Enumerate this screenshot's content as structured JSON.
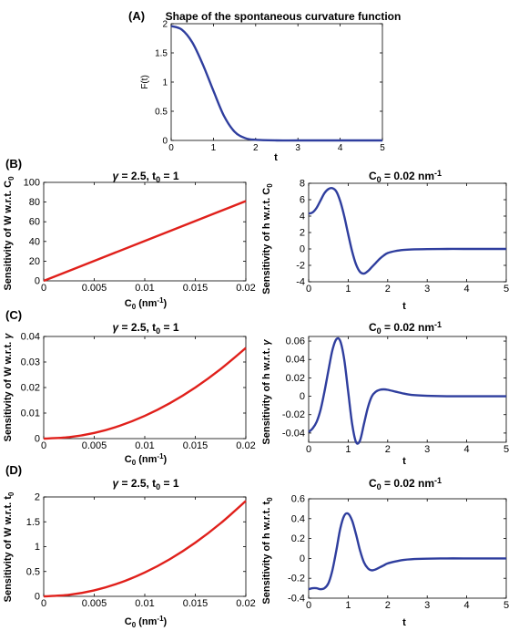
{
  "chart_data": [
    {
      "panel": "(A)",
      "type": "line",
      "title": "Shape of the spontaneous curvature function",
      "xlabel": "t",
      "ylabel": "F(t)",
      "xlim": [
        0,
        5
      ],
      "ylim": [
        0,
        2
      ],
      "xticks": [
        0,
        1,
        2,
        3,
        4,
        5
      ],
      "yticks": [
        0,
        0.5,
        1,
        1.5,
        2
      ],
      "series": [
        {
          "color": "#2f3e9e",
          "x": [
            0,
            0.25,
            0.5,
            0.75,
            1,
            1.25,
            1.5,
            1.75,
            2,
            2.5,
            3,
            4,
            5
          ],
          "y": [
            1.96,
            1.9,
            1.68,
            1.3,
            0.85,
            0.42,
            0.15,
            0.04,
            0.01,
            0,
            0,
            0,
            0
          ]
        }
      ]
    },
    {
      "panel": "(B)",
      "type": "line",
      "title": "γ = 2.5, t₀ = 1",
      "xlabel": "C₀ (nm⁻¹)",
      "ylabel": "Sensitivity of W w.r.t. C₀",
      "xlim": [
        0,
        0.02
      ],
      "ylim": [
        0,
        100
      ],
      "xticks": [
        "0",
        "0.005",
        "0.01",
        "0.015",
        "0.02"
      ],
      "yticks": [
        0,
        20,
        40,
        60,
        80,
        100
      ],
      "series": [
        {
          "color": "#e0201b",
          "x": [
            0,
            0.005,
            0.01,
            0.015,
            0.02
          ],
          "y": [
            0,
            20.25,
            40.5,
            60.75,
            81
          ]
        }
      ]
    },
    {
      "panel": "(B)",
      "type": "line",
      "title": "C₀ = 0.02 nm⁻¹",
      "xlabel": "t",
      "ylabel": "Sensitivity of h w.r.t. C₀",
      "xlim": [
        0,
        5
      ],
      "ylim": [
        -4,
        8
      ],
      "xticks": [
        0,
        1,
        2,
        3,
        4,
        5
      ],
      "yticks": [
        -4,
        -2,
        0,
        2,
        4,
        6,
        8
      ],
      "series": [
        {
          "color": "#2f3e9e",
          "x": [
            0,
            0.1,
            0.2,
            0.3,
            0.4,
            0.5,
            0.6,
            0.7,
            0.8,
            0.9,
            1.0,
            1.1,
            1.2,
            1.3,
            1.4,
            1.5,
            1.6,
            1.7,
            1.8,
            1.9,
            2.0,
            2.2,
            2.4,
            2.6,
            3.0,
            3.5,
            4,
            5
          ],
          "y": [
            4.3,
            4.45,
            5.0,
            5.9,
            6.8,
            7.3,
            7.4,
            7.0,
            5.8,
            4.0,
            1.8,
            -0.3,
            -1.9,
            -2.8,
            -3.0,
            -2.7,
            -2.2,
            -1.7,
            -1.2,
            -0.8,
            -0.5,
            -0.25,
            -0.12,
            -0.06,
            -0.02,
            0,
            0,
            0
          ]
        }
      ]
    },
    {
      "panel": "(C)",
      "type": "line",
      "title": "γ = 2.5, t₀ = 1",
      "xlabel": "C₀ (nm⁻¹)",
      "ylabel": "Sensitivity of W w.r.t. γ",
      "xlim": [
        0,
        0.02
      ],
      "ylim": [
        0,
        0.04
      ],
      "xticks": [
        "0",
        "0.005",
        "0.01",
        "0.015",
        "0.02"
      ],
      "yticks": [
        "0",
        "0.01",
        "0.02",
        "0.03",
        "0.04"
      ],
      "series": [
        {
          "color": "#e0201b",
          "x": [
            0,
            0.0025,
            0.005,
            0.0075,
            0.01,
            0.0125,
            0.015,
            0.0175,
            0.02
          ],
          "y": [
            0,
            0.00055,
            0.0022,
            0.005,
            0.0089,
            0.0139,
            0.02,
            0.0272,
            0.0355
          ]
        }
      ]
    },
    {
      "panel": "(C)",
      "type": "line",
      "title": "C₀ = 0.02 nm⁻¹",
      "xlabel": "t",
      "ylabel": "Sensitivity of h w.r.t. γ",
      "xlim": [
        0,
        5
      ],
      "ylim": [
        -0.05,
        0.065
      ],
      "xticks": [
        0,
        1,
        2,
        3,
        4,
        5
      ],
      "yticks": [
        "-0.04",
        "-0.02",
        "0",
        "0.02",
        "0.04",
        "0.06"
      ],
      "series": [
        {
          "color": "#2f3e9e",
          "x": [
            0,
            0.1,
            0.2,
            0.3,
            0.4,
            0.5,
            0.6,
            0.7,
            0.8,
            0.9,
            1.0,
            1.1,
            1.2,
            1.3,
            1.4,
            1.5,
            1.6,
            1.7,
            1.8,
            1.9,
            2.0,
            2.2,
            2.4,
            2.6,
            3.0,
            3.5,
            4,
            5
          ],
          "y": [
            -0.039,
            -0.035,
            -0.028,
            -0.015,
            0.005,
            0.028,
            0.05,
            0.062,
            0.06,
            0.04,
            0.005,
            -0.03,
            -0.05,
            -0.048,
            -0.03,
            -0.012,
            0.0,
            0.005,
            0.007,
            0.0075,
            0.007,
            0.005,
            0.003,
            0.0015,
            0.0005,
            0,
            0,
            0
          ]
        }
      ]
    },
    {
      "panel": "(D)",
      "type": "line",
      "title": "γ = 2.5, t₀ = 1",
      "xlabel": "C₀ (nm⁻¹)",
      "ylabel": "Sensitivity of W w.r.t. t₀",
      "xlim": [
        0,
        0.02
      ],
      "ylim": [
        0,
        2
      ],
      "xticks": [
        "0",
        "0.005",
        "0.01",
        "0.015",
        "0.02"
      ],
      "yticks": [
        0,
        0.5,
        1,
        1.5,
        2
      ],
      "series": [
        {
          "color": "#e0201b",
          "x": [
            0,
            0.0025,
            0.005,
            0.0075,
            0.01,
            0.0125,
            0.015,
            0.0175,
            0.02
          ],
          "y": [
            0,
            0.03,
            0.12,
            0.27,
            0.48,
            0.75,
            1.08,
            1.47,
            1.92
          ]
        }
      ]
    },
    {
      "panel": "(D)",
      "type": "line",
      "title": "C₀ = 0.02 nm⁻¹",
      "xlabel": "t",
      "ylabel": "Sensitivity of h w.r.t. t₀",
      "xlim": [
        0,
        5
      ],
      "ylim": [
        -0.4,
        0.6
      ],
      "xticks": [
        0,
        1,
        2,
        3,
        4,
        5
      ],
      "yticks": [
        -0.4,
        -0.2,
        0,
        0.2,
        0.4,
        0.6
      ],
      "series": [
        {
          "color": "#2f3e9e",
          "x": [
            0,
            0.1,
            0.2,
            0.3,
            0.4,
            0.5,
            0.6,
            0.7,
            0.8,
            0.9,
            1.0,
            1.1,
            1.2,
            1.3,
            1.4,
            1.5,
            1.6,
            1.7,
            1.8,
            1.9,
            2.0,
            2.2,
            2.4,
            2.6,
            3.0,
            3.5,
            4,
            5
          ],
          "y": [
            -0.31,
            -0.3,
            -0.3,
            -0.31,
            -0.3,
            -0.25,
            -0.12,
            0.08,
            0.3,
            0.43,
            0.45,
            0.38,
            0.24,
            0.08,
            -0.04,
            -0.1,
            -0.12,
            -0.11,
            -0.09,
            -0.07,
            -0.05,
            -0.03,
            -0.015,
            -0.008,
            -0.003,
            0,
            0,
            0
          ]
        }
      ]
    }
  ]
}
